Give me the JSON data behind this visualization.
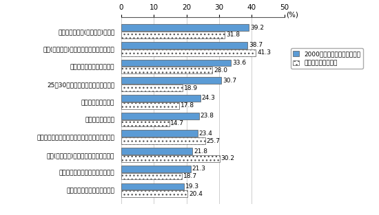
{
  "categories": [
    "評価による昇給(査定昇給)の導入",
    "評価(人事考誸)による昇進・昇格の厳格化",
    "高年層の賃金カーブの抑制",
    "25～30歳前後の賃金水準の引き上げ",
    "職能資格制度の導入",
    "定期昇給額の縮小",
    "個人の成果・業績に連動した一時金の変動強化",
    "評価(人事考誸)による降格・降級の実施",
    "一時金の企業業績連動方式の導入",
    "年齢差の縮小・職能給の拡大"
  ],
  "values_solid": [
    39.2,
    38.7,
    33.6,
    30.7,
    24.3,
    23.8,
    23.4,
    21.8,
    21.3,
    19.3
  ],
  "values_dotted": [
    31.8,
    41.3,
    28.0,
    18.9,
    17.8,
    14.7,
    25.7,
    30.2,
    18.7,
    20.4
  ],
  "color_solid": "#5b9bd5",
  "legend_solid": "2000年度以降に実施したこと",
  "legend_dotted": "今後実施予定のこと",
  "xlim": [
    0,
    50
  ],
  "xticks": [
    0,
    10,
    20,
    30,
    40,
    50
  ],
  "xlabel_suffix": "(%)",
  "background": "#ffffff",
  "bar_edge_color": "#555555",
  "label_fontsize": 6.5,
  "tick_fontsize": 7.5,
  "value_fontsize": 6.5
}
